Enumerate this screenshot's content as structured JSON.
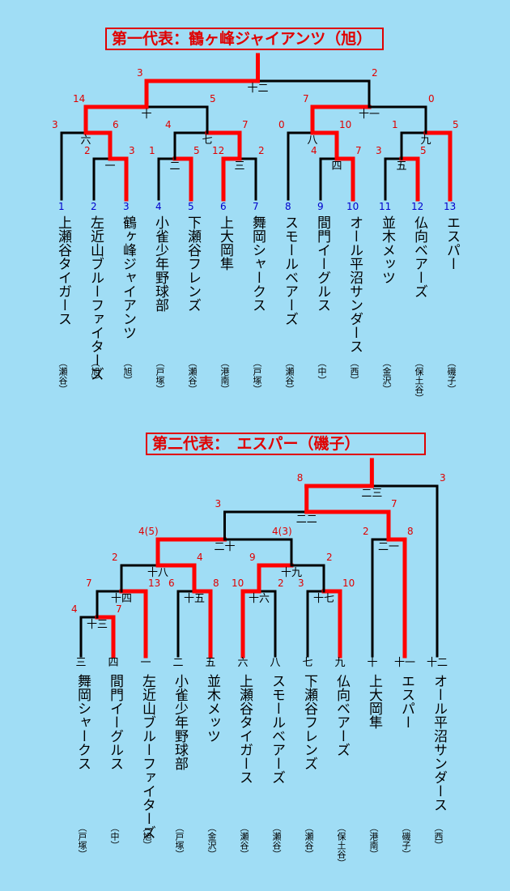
{
  "bracket1": {
    "title": "第一代表：鶴ヶ峰ジャイアンツ（旭）",
    "teams": [
      {
        "num": "1",
        "name": "上瀬谷タイガース",
        "region": "（瀬谷）"
      },
      {
        "num": "2",
        "name": "左近山ブルーファイターズ",
        "region": "（旭）"
      },
      {
        "num": "3",
        "name": "鶴ヶ峰ジャイアンツ",
        "region": "（旭）"
      },
      {
        "num": "4",
        "name": "小雀少年野球部",
        "region": "（戸塚）"
      },
      {
        "num": "5",
        "name": "下瀬谷フレンズ",
        "region": "（瀬谷）"
      },
      {
        "num": "6",
        "name": "上大岡隼",
        "region": "（港南）"
      },
      {
        "num": "7",
        "name": "舞岡シャークス",
        "region": "（戸塚）"
      },
      {
        "num": "8",
        "name": "スモールベアーズ",
        "region": "（瀬谷）"
      },
      {
        "num": "9",
        "name": "間門イーグルス",
        "region": "（中）"
      },
      {
        "num": "10",
        "name": "オール平沼サンダース",
        "region": "（西）"
      },
      {
        "num": "11",
        "name": "並木メッツ",
        "region": "（金沢）"
      },
      {
        "num": "12",
        "name": "仏向ベアーズ",
        "region": "（保土谷）"
      },
      {
        "num": "13",
        "name": "エスパー",
        "region": "（磯子）"
      }
    ],
    "games": [
      {
        "no": "一",
        "scores": [
          "2",
          "3"
        ]
      },
      {
        "no": "二",
        "scores": [
          "1",
          "5"
        ]
      },
      {
        "no": "三",
        "scores": [
          "12",
          "2"
        ]
      },
      {
        "no": "四",
        "scores": [
          "4",
          "7"
        ]
      },
      {
        "no": "五",
        "scores": [
          "3",
          "5"
        ]
      },
      {
        "no": "六",
        "scores": [
          "3",
          "6"
        ]
      },
      {
        "no": "七",
        "scores": [
          "4",
          "7"
        ]
      },
      {
        "no": "八",
        "scores": [
          "0",
          "10"
        ]
      },
      {
        "no": "九",
        "scores": [
          "1",
          "5"
        ]
      },
      {
        "no": "十",
        "scores": [
          "14",
          "5"
        ]
      },
      {
        "no": "十一",
        "scores": [
          "7",
          "0"
        ]
      },
      {
        "no": "十二",
        "scores": [
          "3",
          "2"
        ]
      }
    ]
  },
  "bracket2": {
    "title": "第二代表：　エスパー（磯子）",
    "teams": [
      {
        "num": "三",
        "name": "舞岡シャークス",
        "region": "（戸塚）"
      },
      {
        "num": "四",
        "name": "間門イーグルス",
        "region": "（中）"
      },
      {
        "num": "一",
        "name": "左近山ブルーファイターズ",
        "region": "（旭）"
      },
      {
        "num": "二",
        "name": "小雀少年野球部",
        "region": "（戸塚）"
      },
      {
        "num": "五",
        "name": "並木メッツ",
        "region": "（金沢）"
      },
      {
        "num": "六",
        "name": "上瀬谷タイガース",
        "region": "（瀬谷）"
      },
      {
        "num": "八",
        "name": "スモールベアーズ",
        "region": "（瀬谷）"
      },
      {
        "num": "七",
        "name": "下瀬谷フレンズ",
        "region": "（瀬谷）"
      },
      {
        "num": "九",
        "name": "仏向ベアーズ",
        "region": "（保土谷）"
      },
      {
        "num": "十",
        "name": "上大岡隼",
        "region": "（港南）"
      },
      {
        "num": "十一",
        "name": "エスパー",
        "region": "（磯子）"
      },
      {
        "num": "十二",
        "name": "オール平沼サンダース",
        "region": "（西）"
      }
    ],
    "games": [
      {
        "no": "十三",
        "scores": [
          "4",
          "7"
        ]
      },
      {
        "no": "十四",
        "scores": [
          "7",
          "13"
        ]
      },
      {
        "no": "十五",
        "scores": [
          "6",
          "8"
        ]
      },
      {
        "no": "十六",
        "scores": [
          "10",
          "2"
        ]
      },
      {
        "no": "十七",
        "scores": [
          "3",
          "10"
        ]
      },
      {
        "no": "十八",
        "scores": [
          "2",
          "4"
        ]
      },
      {
        "no": "十九",
        "scores": [
          "9",
          "2"
        ]
      },
      {
        "no": "二十",
        "scores": [
          "4(5)",
          "4(3)"
        ]
      },
      {
        "no": "二一",
        "scores": [
          "2",
          "8"
        ]
      },
      {
        "no": "二二",
        "scores": [
          "3",
          "7"
        ]
      },
      {
        "no": "二三",
        "scores": [
          "8",
          "3"
        ]
      }
    ]
  },
  "colors": {
    "win": "#ff0000",
    "line": "#000000",
    "score": "#e00000",
    "num1": "#0000cc",
    "bg": "#a0ddf5"
  }
}
